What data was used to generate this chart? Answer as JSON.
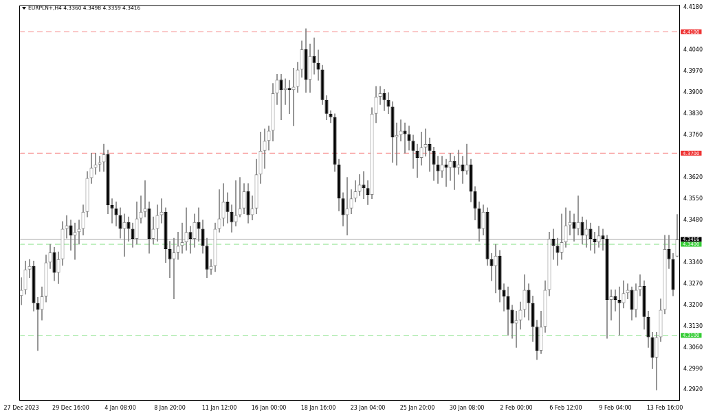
{
  "chart_data": {
    "type": "candlestick",
    "title": "EURPLN+,H4 4.3360 4.3498 4.3359 4.3416",
    "categories": [
      "27 Dec 2023",
      null,
      null,
      null,
      null,
      null,
      null,
      null,
      null,
      null,
      null,
      null,
      "29 Dec 16:00",
      null,
      null,
      null,
      null,
      null,
      null,
      null,
      null,
      null,
      null,
      null,
      "4 Jan 08:00",
      null,
      null,
      null,
      null,
      null,
      null,
      null,
      null,
      null,
      null,
      null,
      "8 Jan 20:00",
      null,
      null,
      null,
      null,
      null,
      null,
      null,
      null,
      null,
      null,
      null,
      "11 Jan 12:00",
      null,
      null,
      null,
      null,
      null,
      null,
      null,
      null,
      null,
      null,
      null,
      "16 Jan 00:00",
      null,
      null,
      null,
      null,
      null,
      null,
      null,
      null,
      null,
      null,
      null,
      "18 Jan 16:00",
      null,
      null,
      null,
      null,
      null,
      null,
      null,
      null,
      null,
      null,
      null,
      "23 Jan 04:00",
      null,
      null,
      null,
      null,
      null,
      null,
      null,
      null,
      null,
      null,
      null,
      "25 Jan 20:00",
      null,
      null,
      null,
      null,
      null,
      null,
      null,
      null,
      null,
      null,
      null,
      "30 Jan 08:00",
      null,
      null,
      null,
      null,
      null,
      null,
      null,
      null,
      null,
      null,
      null,
      "2 Feb 00:00",
      null,
      null,
      null,
      null,
      null,
      null,
      null,
      null,
      null,
      null,
      null,
      "6 Feb 12:00",
      null,
      null,
      null,
      null,
      null,
      null,
      null,
      null,
      null,
      null,
      null,
      "9 Feb 04:00",
      null,
      null,
      null,
      null,
      null,
      null,
      null,
      null,
      null,
      null,
      null,
      "13 Feb 16:00",
      null,
      null,
      null
    ],
    "ohlc": [
      [
        4.323,
        4.329,
        4.32,
        4.325
      ],
      [
        4.325,
        4.3345,
        4.3235,
        4.3317
      ],
      [
        4.3317,
        4.335,
        4.329,
        4.3328
      ],
      [
        4.3328,
        4.3345,
        4.318,
        4.3206
      ],
      [
        4.3206,
        4.3225,
        4.305,
        4.3184
      ],
      [
        4.3184,
        4.326,
        4.315,
        4.3228
      ],
      [
        4.3228,
        4.3365,
        4.321,
        4.334
      ],
      [
        4.334,
        4.34,
        4.332,
        4.3373
      ],
      [
        4.3373,
        4.339,
        4.328,
        4.3306
      ],
      [
        4.3306,
        4.3375,
        4.327,
        4.3351
      ],
      [
        4.3351,
        4.3475,
        4.333,
        4.3451
      ],
      [
        4.3451,
        4.3495,
        4.342,
        4.3462
      ],
      [
        4.3462,
        4.348,
        4.338,
        4.3429
      ],
      [
        4.3429,
        4.347,
        4.335,
        4.344
      ],
      [
        4.344,
        4.348,
        4.34,
        4.3451
      ],
      [
        4.3451,
        4.353,
        4.343,
        4.3507
      ],
      [
        4.3507,
        4.364,
        4.349,
        4.3618
      ],
      [
        4.3618,
        4.37,
        4.36,
        4.3652
      ],
      [
        4.3652,
        4.37,
        4.363,
        4.3663
      ],
      [
        4.3663,
        4.369,
        4.364,
        4.367
      ],
      [
        4.367,
        4.373,
        4.364,
        4.3696
      ],
      [
        4.3696,
        4.371,
        4.35,
        4.3529
      ],
      [
        4.3529,
        4.355,
        4.347,
        4.3518
      ],
      [
        4.3518,
        4.354,
        4.346,
        4.3496
      ],
      [
        4.3496,
        4.352,
        4.342,
        4.3451
      ],
      [
        4.3451,
        4.35,
        4.336,
        4.3473
      ],
      [
        4.3473,
        4.349,
        4.341,
        4.3451
      ],
      [
        4.3451,
        4.347,
        4.339,
        4.3418
      ],
      [
        4.3418,
        4.354,
        4.34,
        4.3485
      ],
      [
        4.3485,
        4.356,
        4.347,
        4.3507
      ],
      [
        4.3507,
        4.361,
        4.349,
        4.3518
      ],
      [
        4.3518,
        4.354,
        4.337,
        4.3418
      ],
      [
        4.3418,
        4.349,
        4.34,
        4.3451
      ],
      [
        4.3451,
        4.353,
        4.341,
        4.3496
      ],
      [
        4.3496,
        4.355,
        4.347,
        4.3507
      ],
      [
        4.3507,
        4.352,
        4.334,
        4.3384
      ],
      [
        4.3384,
        4.341,
        4.329,
        4.3351
      ],
      [
        4.3351,
        4.342,
        4.322,
        4.3373
      ],
      [
        4.3373,
        4.344,
        4.335,
        4.3395
      ],
      [
        4.3395,
        4.347,
        4.337,
        4.3407
      ],
      [
        4.3407,
        4.352,
        4.338,
        4.344
      ],
      [
        4.344,
        4.346,
        4.337,
        4.3418
      ],
      [
        4.3418,
        4.35,
        4.339,
        4.3473
      ],
      [
        4.3473,
        4.352,
        4.341,
        4.3451
      ],
      [
        4.3451,
        4.348,
        4.337,
        4.3395
      ],
      [
        4.3395,
        4.342,
        4.329,
        4.3317
      ],
      [
        4.3317,
        4.335,
        4.33,
        4.3328
      ],
      [
        4.3328,
        4.347,
        4.331,
        4.3451
      ],
      [
        4.3451,
        4.358,
        4.344,
        4.3485
      ],
      [
        4.3485,
        4.36,
        4.346,
        4.354
      ],
      [
        4.354,
        4.357,
        4.347,
        4.3507
      ],
      [
        4.3507,
        4.353,
        4.344,
        4.3473
      ],
      [
        4.3473,
        4.361,
        4.346,
        4.3496
      ],
      [
        4.3496,
        4.362,
        4.349,
        4.3518
      ],
      [
        4.3518,
        4.36,
        4.35,
        4.3574
      ],
      [
        4.3574,
        4.36,
        4.347,
        4.3496
      ],
      [
        4.3496,
        4.356,
        4.348,
        4.3518
      ],
      [
        4.3518,
        4.368,
        4.35,
        4.363
      ],
      [
        4.363,
        4.377,
        4.36,
        4.3708
      ],
      [
        4.3708,
        4.378,
        4.365,
        4.3741
      ],
      [
        4.3741,
        4.379,
        4.371,
        4.3774
      ],
      [
        4.3774,
        4.393,
        4.374,
        4.3897
      ],
      [
        4.3897,
        4.396,
        4.386,
        4.3942
      ],
      [
        4.3942,
        4.396,
        4.381,
        4.3908
      ],
      [
        4.3908,
        4.3945,
        4.386,
        4.3915
      ],
      [
        4.3915,
        4.394,
        4.383,
        4.3908
      ],
      [
        4.3908,
        4.398,
        4.379,
        4.3919
      ],
      [
        4.3919,
        4.4,
        4.39,
        4.3975
      ],
      [
        4.3975,
        4.407,
        4.395,
        4.4042
      ],
      [
        4.4042,
        4.411,
        4.39,
        4.3942
      ],
      [
        4.3942,
        4.406,
        4.39,
        4.402
      ],
      [
        4.402,
        4.408,
        4.396,
        4.3997
      ],
      [
        4.3997,
        4.404,
        4.394,
        4.3975
      ],
      [
        4.3975,
        4.399,
        4.386,
        4.3875
      ],
      [
        4.3875,
        4.389,
        4.381,
        4.383
      ],
      [
        4.383,
        4.384,
        4.38,
        4.3819
      ],
      [
        4.3819,
        4.383,
        4.364,
        4.3663
      ],
      [
        4.3663,
        4.368,
        4.351,
        4.3551
      ],
      [
        4.3551,
        4.357,
        4.346,
        4.3496
      ],
      [
        4.3496,
        4.362,
        4.343,
        4.3518
      ],
      [
        4.3518,
        4.358,
        4.35,
        4.3551
      ],
      [
        4.3551,
        4.361,
        4.354,
        4.3574
      ],
      [
        4.3574,
        4.363,
        4.356,
        4.3596
      ],
      [
        4.3596,
        4.364,
        4.355,
        4.3585
      ],
      [
        4.3585,
        4.361,
        4.353,
        4.3563
      ],
      [
        4.3563,
        4.385,
        4.355,
        4.383
      ],
      [
        4.383,
        4.392,
        4.38,
        4.3886
      ],
      [
        4.3886,
        4.392,
        4.386,
        4.3897
      ],
      [
        4.3897,
        4.391,
        4.384,
        4.3875
      ],
      [
        4.3875,
        4.39,
        4.383,
        4.3853
      ],
      [
        4.3853,
        4.387,
        4.367,
        4.3752
      ],
      [
        4.3752,
        4.38,
        4.366,
        4.376
      ],
      [
        4.376,
        4.381,
        4.374,
        4.3774
      ],
      [
        4.3774,
        4.38,
        4.37,
        4.3763
      ],
      [
        4.3763,
        4.379,
        4.371,
        4.3741
      ],
      [
        4.3741,
        4.376,
        4.365,
        4.3708
      ],
      [
        4.3708,
        4.373,
        4.362,
        4.3685
      ],
      [
        4.3685,
        4.377,
        4.366,
        4.3719
      ],
      [
        4.3719,
        4.378,
        4.369,
        4.373
      ],
      [
        4.373,
        4.375,
        4.364,
        4.3708
      ],
      [
        4.3708,
        4.372,
        4.361,
        4.3663
      ],
      [
        4.3663,
        4.369,
        4.36,
        4.3641
      ],
      [
        4.3641,
        4.369,
        4.362,
        4.3663
      ],
      [
        4.3663,
        4.368,
        4.359,
        4.3652
      ],
      [
        4.3652,
        4.37,
        4.361,
        4.3674
      ],
      [
        4.3674,
        4.369,
        4.358,
        4.3652
      ],
      [
        4.3652,
        4.371,
        4.363,
        4.3663
      ],
      [
        4.3663,
        4.369,
        4.36,
        4.3641
      ],
      [
        4.3641,
        4.373,
        4.363,
        4.3663
      ],
      [
        4.3663,
        4.368,
        4.354,
        4.3574
      ],
      [
        4.3574,
        4.359,
        4.348,
        4.3518
      ],
      [
        4.3518,
        4.354,
        4.341,
        4.3451
      ],
      [
        4.3451,
        4.353,
        4.343,
        4.3507
      ],
      [
        4.3507,
        4.352,
        4.333,
        4.3351
      ],
      [
        4.3351,
        4.337,
        4.328,
        4.3328
      ],
      [
        4.3328,
        4.34,
        4.324,
        4.3362
      ],
      [
        4.3362,
        4.338,
        4.321,
        4.325
      ],
      [
        4.325,
        4.327,
        4.318,
        4.3228
      ],
      [
        4.3228,
        4.326,
        4.31,
        4.3184
      ],
      [
        4.3184,
        4.32,
        4.309,
        4.3139
      ],
      [
        4.3139,
        4.318,
        4.306,
        4.315
      ],
      [
        4.315,
        4.321,
        4.312,
        4.3184
      ],
      [
        4.3184,
        4.33,
        4.316,
        4.325
      ],
      [
        4.325,
        4.327,
        4.315,
        4.3206
      ],
      [
        4.3206,
        4.323,
        4.308,
        4.3128
      ],
      [
        4.3128,
        4.315,
        4.302,
        4.305
      ],
      [
        4.305,
        4.318,
        4.304,
        4.3128
      ],
      [
        4.3128,
        4.328,
        4.311,
        4.325
      ],
      [
        4.325,
        4.344,
        4.323,
        4.3418
      ],
      [
        4.3418,
        4.345,
        4.335,
        4.3395
      ],
      [
        4.3395,
        4.342,
        4.333,
        4.3373
      ],
      [
        4.3373,
        4.35,
        4.335,
        4.3407
      ],
      [
        4.3407,
        4.352,
        4.339,
        4.3462
      ],
      [
        4.3462,
        4.351,
        4.343,
        4.3473
      ],
      [
        4.3473,
        4.35,
        4.341,
        4.3451
      ],
      [
        4.3451,
        4.356,
        4.343,
        4.3473
      ],
      [
        4.3473,
        4.349,
        4.34,
        4.3429
      ],
      [
        4.3429,
        4.348,
        4.339,
        4.3451
      ],
      [
        4.3451,
        4.347,
        4.338,
        4.3418
      ],
      [
        4.3418,
        4.344,
        4.337,
        4.3407
      ],
      [
        4.3407,
        4.346,
        4.339,
        4.3429
      ],
      [
        4.3429,
        4.345,
        4.338,
        4.3418
      ],
      [
        4.3418,
        4.343,
        4.309,
        4.3217
      ],
      [
        4.3217,
        4.325,
        4.315,
        4.3228
      ],
      [
        4.3228,
        4.325,
        4.318,
        4.3217
      ],
      [
        4.3217,
        4.326,
        4.31,
        4.3206
      ],
      [
        4.3206,
        4.328,
        4.319,
        4.3239
      ],
      [
        4.3239,
        4.327,
        4.322,
        4.325
      ],
      [
        4.325,
        4.326,
        4.315,
        4.3184
      ],
      [
        4.3184,
        4.327,
        4.316,
        4.325
      ],
      [
        4.325,
        4.33,
        4.323,
        4.3262
      ],
      [
        4.3262,
        4.328,
        4.312,
        4.3161
      ],
      [
        4.3161,
        4.318,
        4.306,
        4.3094
      ],
      [
        4.3094,
        4.311,
        4.299,
        4.3027
      ],
      [
        4.3027,
        4.311,
        4.292,
        4.3094
      ],
      [
        4.3094,
        4.322,
        4.308,
        4.3184
      ],
      [
        4.3184,
        4.343,
        4.317,
        4.3384
      ],
      [
        4.3384,
        4.343,
        4.332,
        4.3351
      ],
      [
        4.3351,
        4.337,
        4.323,
        4.325
      ],
      [
        4.336,
        4.3498,
        4.3359,
        4.3416
      ]
    ],
    "ylim": [
      4.2887,
      4.4187
    ],
    "yticks": [
      {
        "value": 4.292,
        "label": "4.2920"
      },
      {
        "value": 4.299,
        "label": "4.2990"
      },
      {
        "value": 4.306,
        "label": "4.3060"
      },
      {
        "value": 4.313,
        "label": "4.3130"
      },
      {
        "value": 4.32,
        "label": "4.3200"
      },
      {
        "value": 4.327,
        "label": "4.3270"
      },
      {
        "value": 4.334,
        "label": "4.3340"
      },
      {
        "value": 4.348,
        "label": "4.3480"
      },
      {
        "value": 4.355,
        "label": "4.3550"
      },
      {
        "value": 4.362,
        "label": "4.3620"
      },
      {
        "value": 4.376,
        "label": "4.3760"
      },
      {
        "value": 4.383,
        "label": "4.3830"
      },
      {
        "value": 4.39,
        "label": "4.3900"
      },
      {
        "value": 4.397,
        "label": "4.3970"
      },
      {
        "value": 4.404,
        "label": "4.4040"
      },
      {
        "value": 4.418,
        "label": "4.4180"
      }
    ],
    "ref_lines": [
      {
        "axis": "y",
        "value": 4.41,
        "label": "4.4100",
        "color": "#ee3333",
        "line_style": "dashed"
      },
      {
        "axis": "y",
        "value": 4.37,
        "label": "4.3700",
        "color": "#ee3333",
        "line_style": "dashed"
      },
      {
        "axis": "y",
        "value": 4.3416,
        "label": "4.3416",
        "color": "#000000",
        "line_style": "solid"
      },
      {
        "axis": "y",
        "value": 4.34,
        "label": "4.3400",
        "color": "#33cc33",
        "line_style": "dashed"
      },
      {
        "axis": "y",
        "value": 4.31,
        "label": "4.3100",
        "color": "#33cc33",
        "line_style": "dashed"
      }
    ],
    "grid": false,
    "legend": false
  }
}
